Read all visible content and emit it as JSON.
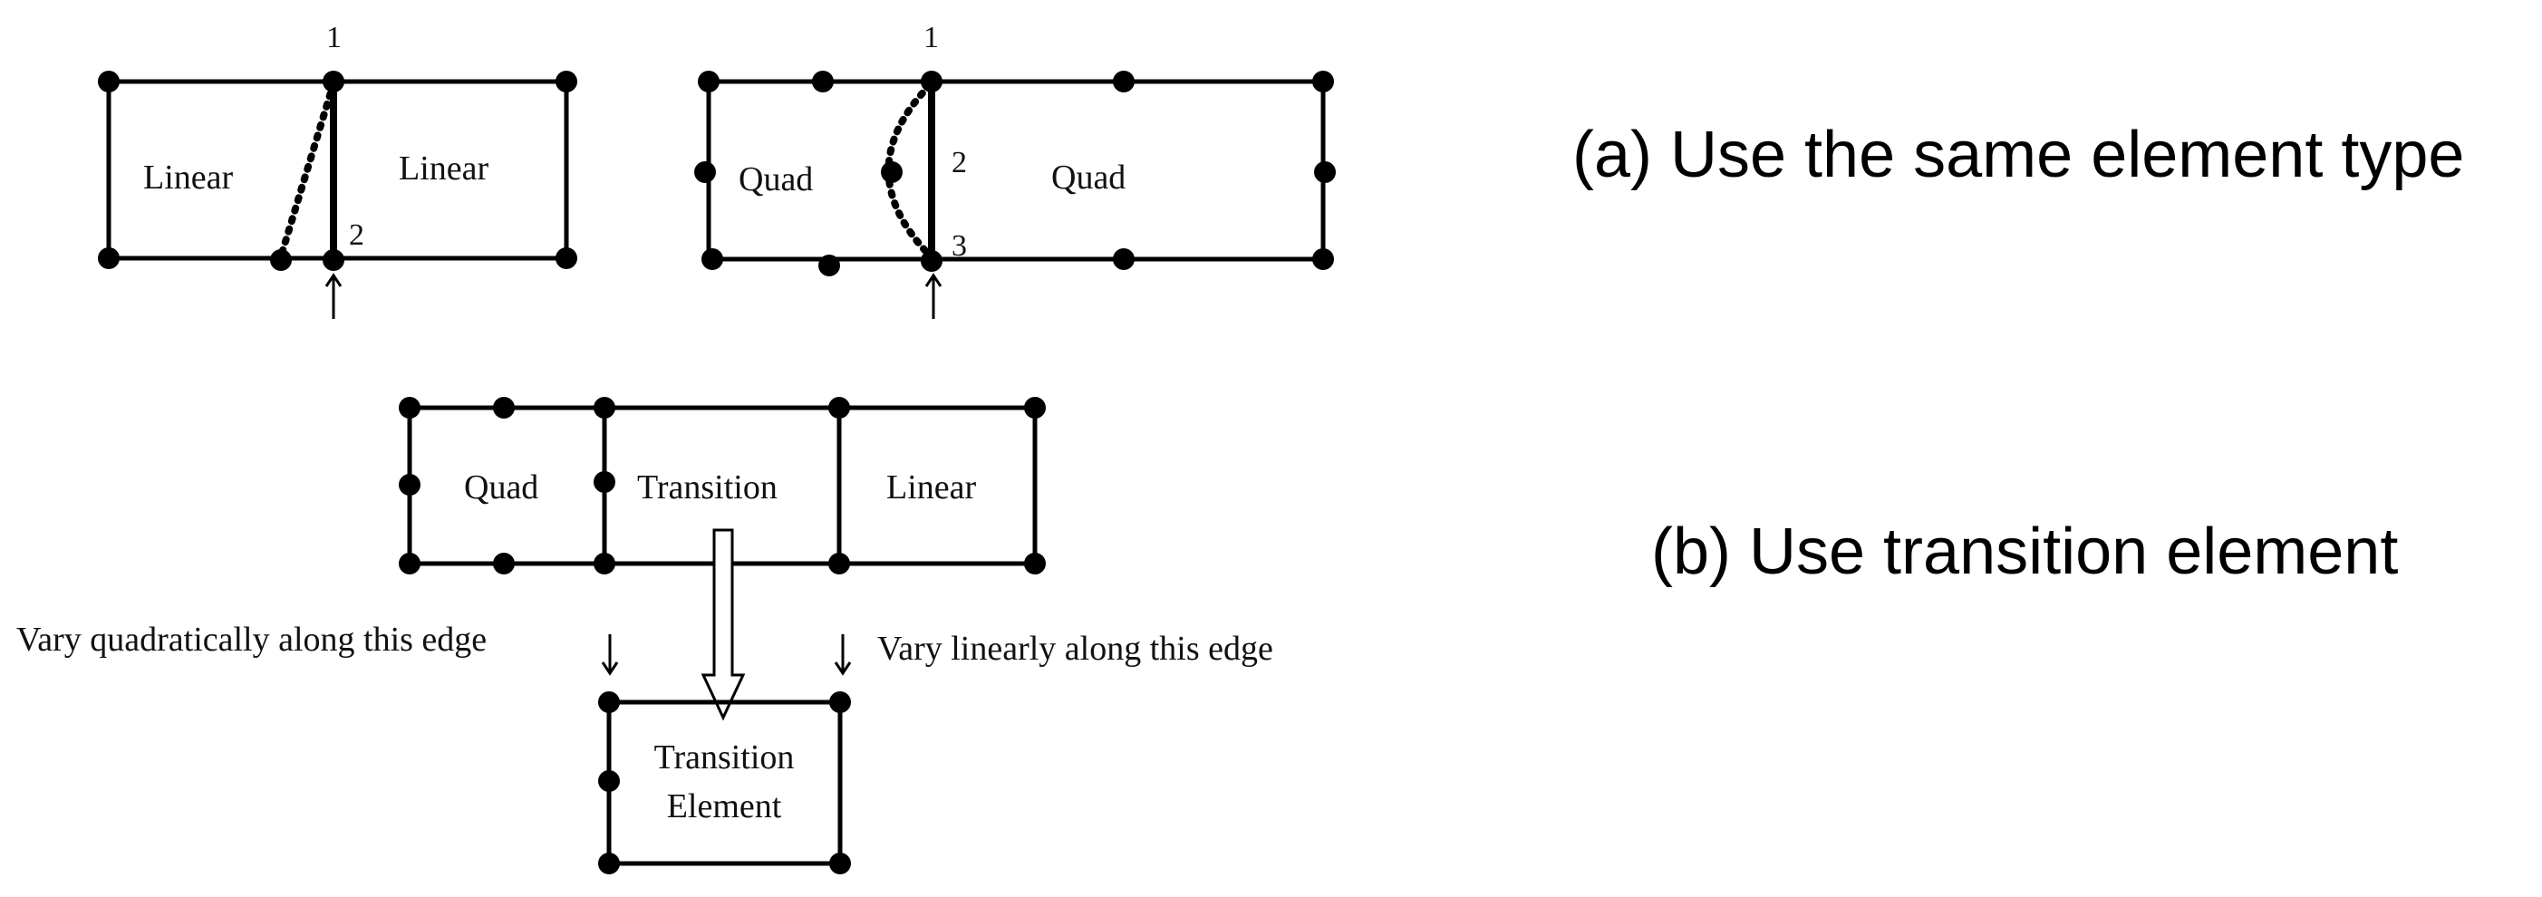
{
  "diagram_a": {
    "left_pair": {
      "left_element_label": "Linear",
      "right_element_label": "Linear",
      "node_top_label": "1",
      "node_bottom_label": "2"
    },
    "right_pair": {
      "left_element_label": "Quad",
      "right_element_label": "Quad",
      "node_top_label": "1",
      "node_mid_label": "2",
      "node_bottom_label": "3"
    },
    "caption": "(a) Use the same element type"
  },
  "diagram_b": {
    "row": {
      "quad_label": "Quad",
      "transition_label": "Transition",
      "linear_label": "Linear"
    },
    "left_note": "Vary quadratically along this edge",
    "right_note": "Vary linearly along this edge",
    "element_line1": "Transition",
    "element_line2": "Element",
    "caption": "(b) Use transition element"
  }
}
